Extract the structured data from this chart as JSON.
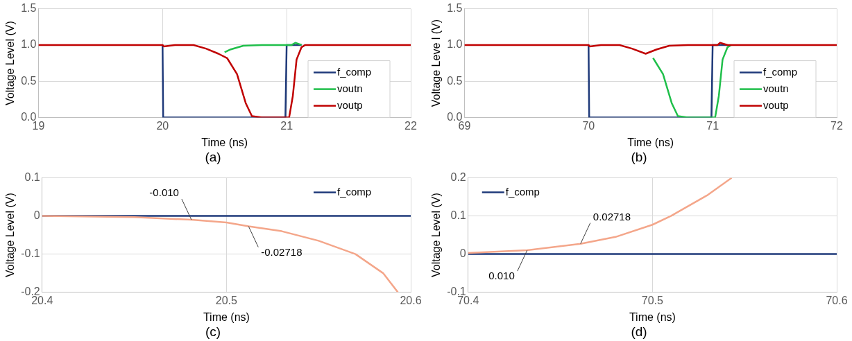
{
  "chart_data": [
    {
      "type": "line",
      "xlabel": "Time (ns)",
      "ylabel": "Voltage Level (V)",
      "annotations": [
        "(a)"
      ],
      "xlim": [
        19,
        22
      ],
      "xticks": [
        19,
        20,
        21,
        22
      ],
      "ylim": [
        0,
        1.5
      ],
      "yticks": [
        {
          "value": 0,
          "label": "0.0"
        },
        {
          "value": 0.5,
          "label": "0.5"
        },
        {
          "value": 1,
          "label": "1.0"
        },
        {
          "value": 1.5,
          "label": "1.5"
        }
      ],
      "grid": true,
      "legend": "bottom right",
      "line_style": "solid",
      "series": [
        {
          "name": "f_comp",
          "color": "#1f3a7a",
          "x": [
            20,
            20.005,
            20.99,
            21.0,
            21.12
          ],
          "values": [
            1,
            0,
            0,
            1,
            1
          ]
        },
        {
          "name": "voutn",
          "color": "#1fbf4a",
          "x": [
            20.5,
            20.55,
            20.65,
            20.8,
            21.04,
            21.07,
            21.12
          ],
          "values": [
            0.9,
            0.94,
            0.99,
            1,
            1,
            1.03,
            1
          ]
        },
        {
          "name": "voutp",
          "color": "#c00000",
          "x": [
            19,
            20,
            20.01,
            20.1,
            20.25,
            20.35,
            20.45,
            20.52,
            20.6,
            20.67,
            20.72,
            20.8,
            21.0,
            21.02,
            21.05,
            21.08,
            21.12,
            21.15,
            22
          ],
          "values": [
            1,
            1,
            0.98,
            1,
            1,
            0.95,
            0.88,
            0.82,
            0.6,
            0.2,
            0.02,
            0,
            0,
            0,
            0.3,
            0.8,
            0.97,
            1,
            1
          ]
        }
      ]
    },
    {
      "type": "line",
      "xlabel": "Time (ns)",
      "ylabel": "Voltage Leve l (V)",
      "annotations": [
        "(b)"
      ],
      "xlim": [
        69,
        72
      ],
      "xticks": [
        69,
        70,
        71,
        72
      ],
      "ylim": [
        0,
        1.5
      ],
      "yticks": [
        {
          "value": 0,
          "label": "0.0"
        },
        {
          "value": 0.5,
          "label": "0.5"
        },
        {
          "value": 1,
          "label": "1.0"
        },
        {
          "value": 1.5,
          "label": "1.5"
        }
      ],
      "grid": true,
      "legend": "bottom right",
      "line_style": "solid",
      "series": [
        {
          "name": "f_comp",
          "color": "#1f3a7a",
          "x": [
            70,
            70.005,
            70.99,
            71.0,
            71.12
          ],
          "values": [
            1,
            0,
            0,
            1,
            1
          ]
        },
        {
          "name": "voutn",
          "color": "#1fbf4a",
          "x": [
            70.52,
            70.6,
            70.67,
            70.72,
            70.8,
            71.0,
            71.02,
            71.05,
            71.08,
            71.12,
            71.15
          ],
          "values": [
            0.82,
            0.6,
            0.2,
            0.02,
            0,
            0,
            0,
            0.3,
            0.8,
            0.97,
            1
          ]
        },
        {
          "name": "voutp",
          "color": "#c00000",
          "x": [
            69,
            70,
            70.01,
            70.1,
            70.25,
            70.35,
            70.46,
            70.55,
            70.65,
            70.8,
            71.04,
            71.06,
            71.12,
            72
          ],
          "values": [
            1,
            1,
            0.98,
            1,
            1,
            0.95,
            0.88,
            0.94,
            0.99,
            1,
            1,
            1.03,
            1,
            1
          ]
        }
      ]
    },
    {
      "type": "line",
      "xlabel": "Time (ns)",
      "ylabel": "Voltage Level (V)",
      "annotations": [
        {
          "text": "-0.010",
          "x": 20.481,
          "y": -0.01
        },
        {
          "text": "-0.02718",
          "x": 20.512,
          "y": -0.02718
        },
        "(c)"
      ],
      "xlim": [
        20.4,
        20.6
      ],
      "xticks": [
        20.4,
        20.5,
        20.6
      ],
      "ylim": [
        -0.2,
        0.1
      ],
      "yticks": [
        -0.2,
        -0.1,
        0,
        0.1
      ],
      "grid": true,
      "legend": "top right",
      "line_style": "solid",
      "series": [
        {
          "name": "f_comp",
          "color": "#1f3a7a",
          "x": [
            20.4,
            20.6
          ],
          "values": [
            0,
            0
          ]
        },
        {
          "color": "#f4a68a",
          "x": [
            20.4,
            20.45,
            20.481,
            20.5,
            20.512,
            20.53,
            20.55,
            20.57,
            20.585,
            20.593
          ],
          "values": [
            0,
            -0.003,
            -0.01,
            -0.017,
            -0.027,
            -0.04,
            -0.065,
            -0.1,
            -0.15,
            -0.2
          ]
        }
      ]
    },
    {
      "type": "line",
      "xlabel": "Time (ns)",
      "ylabel": "Voltage Level (V)",
      "annotations": [
        {
          "text": "0.010",
          "x": 70.432,
          "y": 0.01
        },
        {
          "text": "0.02718",
          "x": 70.461,
          "y": 0.02718
        },
        "(d)"
      ],
      "xlim": [
        70.4,
        70.6
      ],
      "xticks": [
        70.4,
        70.5,
        70.6
      ],
      "ylim": [
        -0.1,
        0.2
      ],
      "yticks": [
        -0.1,
        0,
        0.1,
        0.2
      ],
      "grid": true,
      "legend": "top left",
      "line_style": "solid",
      "series": [
        {
          "name": "f_comp",
          "color": "#1f3a7a",
          "x": [
            70.4,
            70.6
          ],
          "values": [
            0,
            0
          ]
        },
        {
          "color": "#f4a68a",
          "x": [
            70.4,
            70.432,
            70.461,
            70.48,
            70.5,
            70.51,
            70.53,
            70.543
          ],
          "values": [
            0.003,
            0.01,
            0.027,
            0.045,
            0.077,
            0.1,
            0.155,
            0.2
          ]
        }
      ]
    }
  ]
}
